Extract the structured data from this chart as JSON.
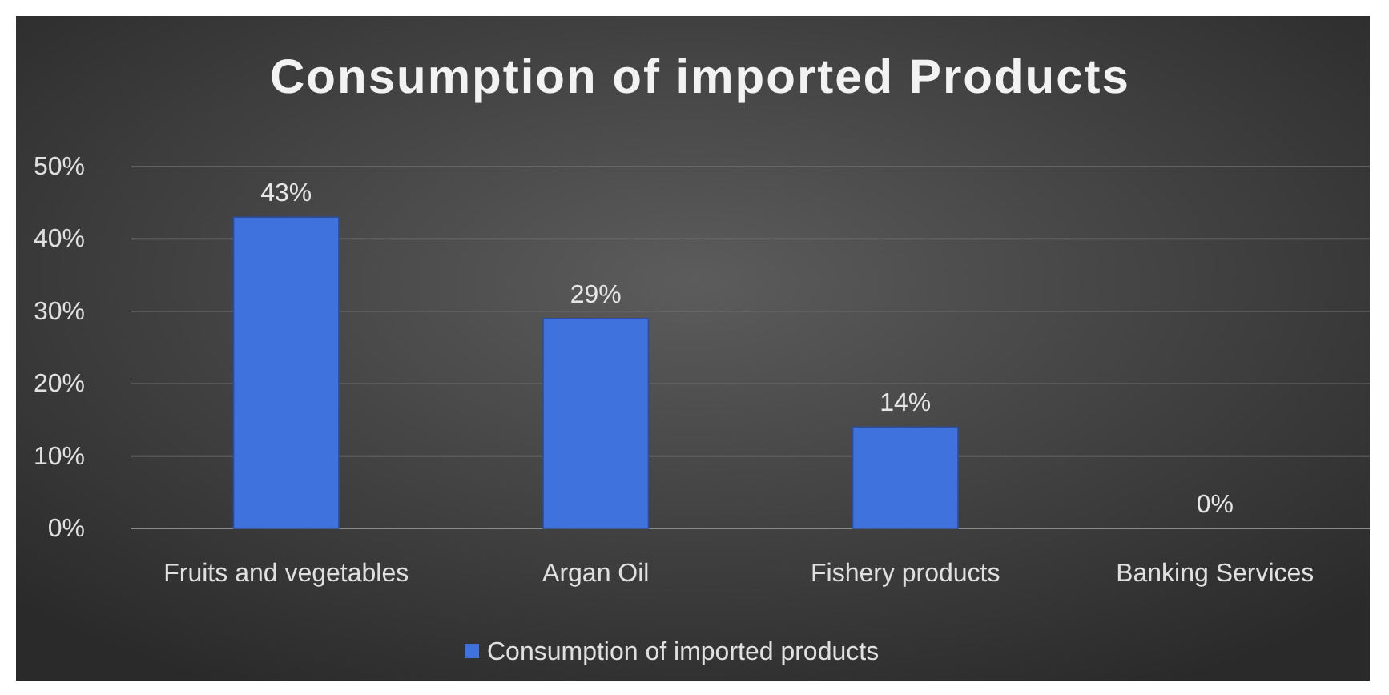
{
  "chart_data": {
    "type": "bar",
    "title": "Consumption of imported Products",
    "categories": [
      "Fruits and vegetables",
      "Argan Oil",
      "Fishery products",
      "Banking Services"
    ],
    "series": [
      {
        "name": "Consumption of imported products",
        "color": "#3f72dc",
        "values": [
          43,
          29,
          14,
          0
        ],
        "value_labels": [
          "43%",
          "29%",
          "14%",
          "0%"
        ]
      }
    ],
    "ylim": [
      0,
      50
    ],
    "yticks": [
      {
        "value": 0,
        "label": "0%"
      },
      {
        "value": 10,
        "label": "10%"
      },
      {
        "value": 20,
        "label": "20%"
      },
      {
        "value": 30,
        "label": "30%"
      },
      {
        "value": 40,
        "label": "40%"
      },
      {
        "value": 50,
        "label": "50%"
      }
    ],
    "grid": "y",
    "legend": "bottom"
  }
}
